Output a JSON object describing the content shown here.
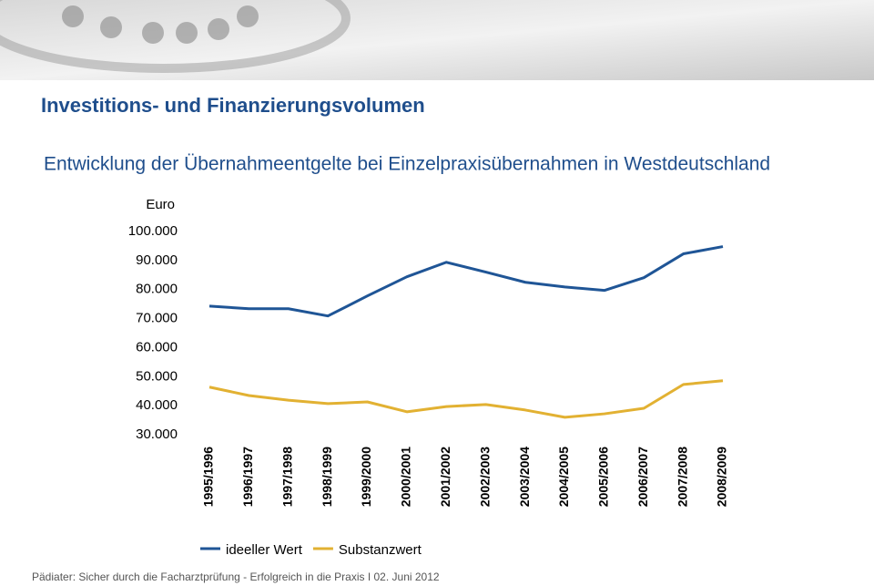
{
  "chart_data": {
    "type": "line",
    "title": "Investitions- und Finanzierungsvolumen",
    "subtitle": "Entwicklung der Übernahmeentgelte bei Einzelpraxisübernahmen in Westdeutschland",
    "y_label": "Euro",
    "categories": [
      "1995/1996",
      "1996/1997",
      "1997/1998",
      "1998/1999",
      "1999/2000",
      "2000/2001",
      "2001/2002",
      "2002/2003",
      "2003/2004",
      "2004/2005",
      "2005/2006",
      "2006/2007",
      "2007/2008",
      "2008/2009"
    ],
    "series": [
      {
        "name": "ideeller Wert",
        "color": "#1f5596",
        "values": [
          74300,
          73400,
          73400,
          70900,
          77800,
          84400,
          89400,
          86000,
          82500,
          80900,
          79700,
          84100,
          92300,
          94800
        ]
      },
      {
        "name": "Substanzwert",
        "color": "#e2b132",
        "values": [
          46400,
          43500,
          41900,
          40700,
          41300,
          37900,
          39700,
          40400,
          38500,
          36000,
          37200,
          39100,
          47300,
          48600
        ]
      }
    ],
    "ylim": [
      30000,
      100000
    ],
    "yticks": [
      {
        "value": 100000,
        "label": "100.000"
      },
      {
        "value": 90000,
        "label": "90.000"
      },
      {
        "value": 80000,
        "label": "80.000"
      },
      {
        "value": 70000,
        "label": "70.000"
      },
      {
        "value": 60000,
        "label": "60.000"
      },
      {
        "value": 50000,
        "label": "50.000"
      },
      {
        "value": 40000,
        "label": "40.000"
      },
      {
        "value": 30000,
        "label": "30.000"
      }
    ],
    "grid": false
  },
  "footer": "Pädiater: Sicher durch die Facharztprüfung - Erfolgreich in die Praxis I 02. Juni 2012"
}
